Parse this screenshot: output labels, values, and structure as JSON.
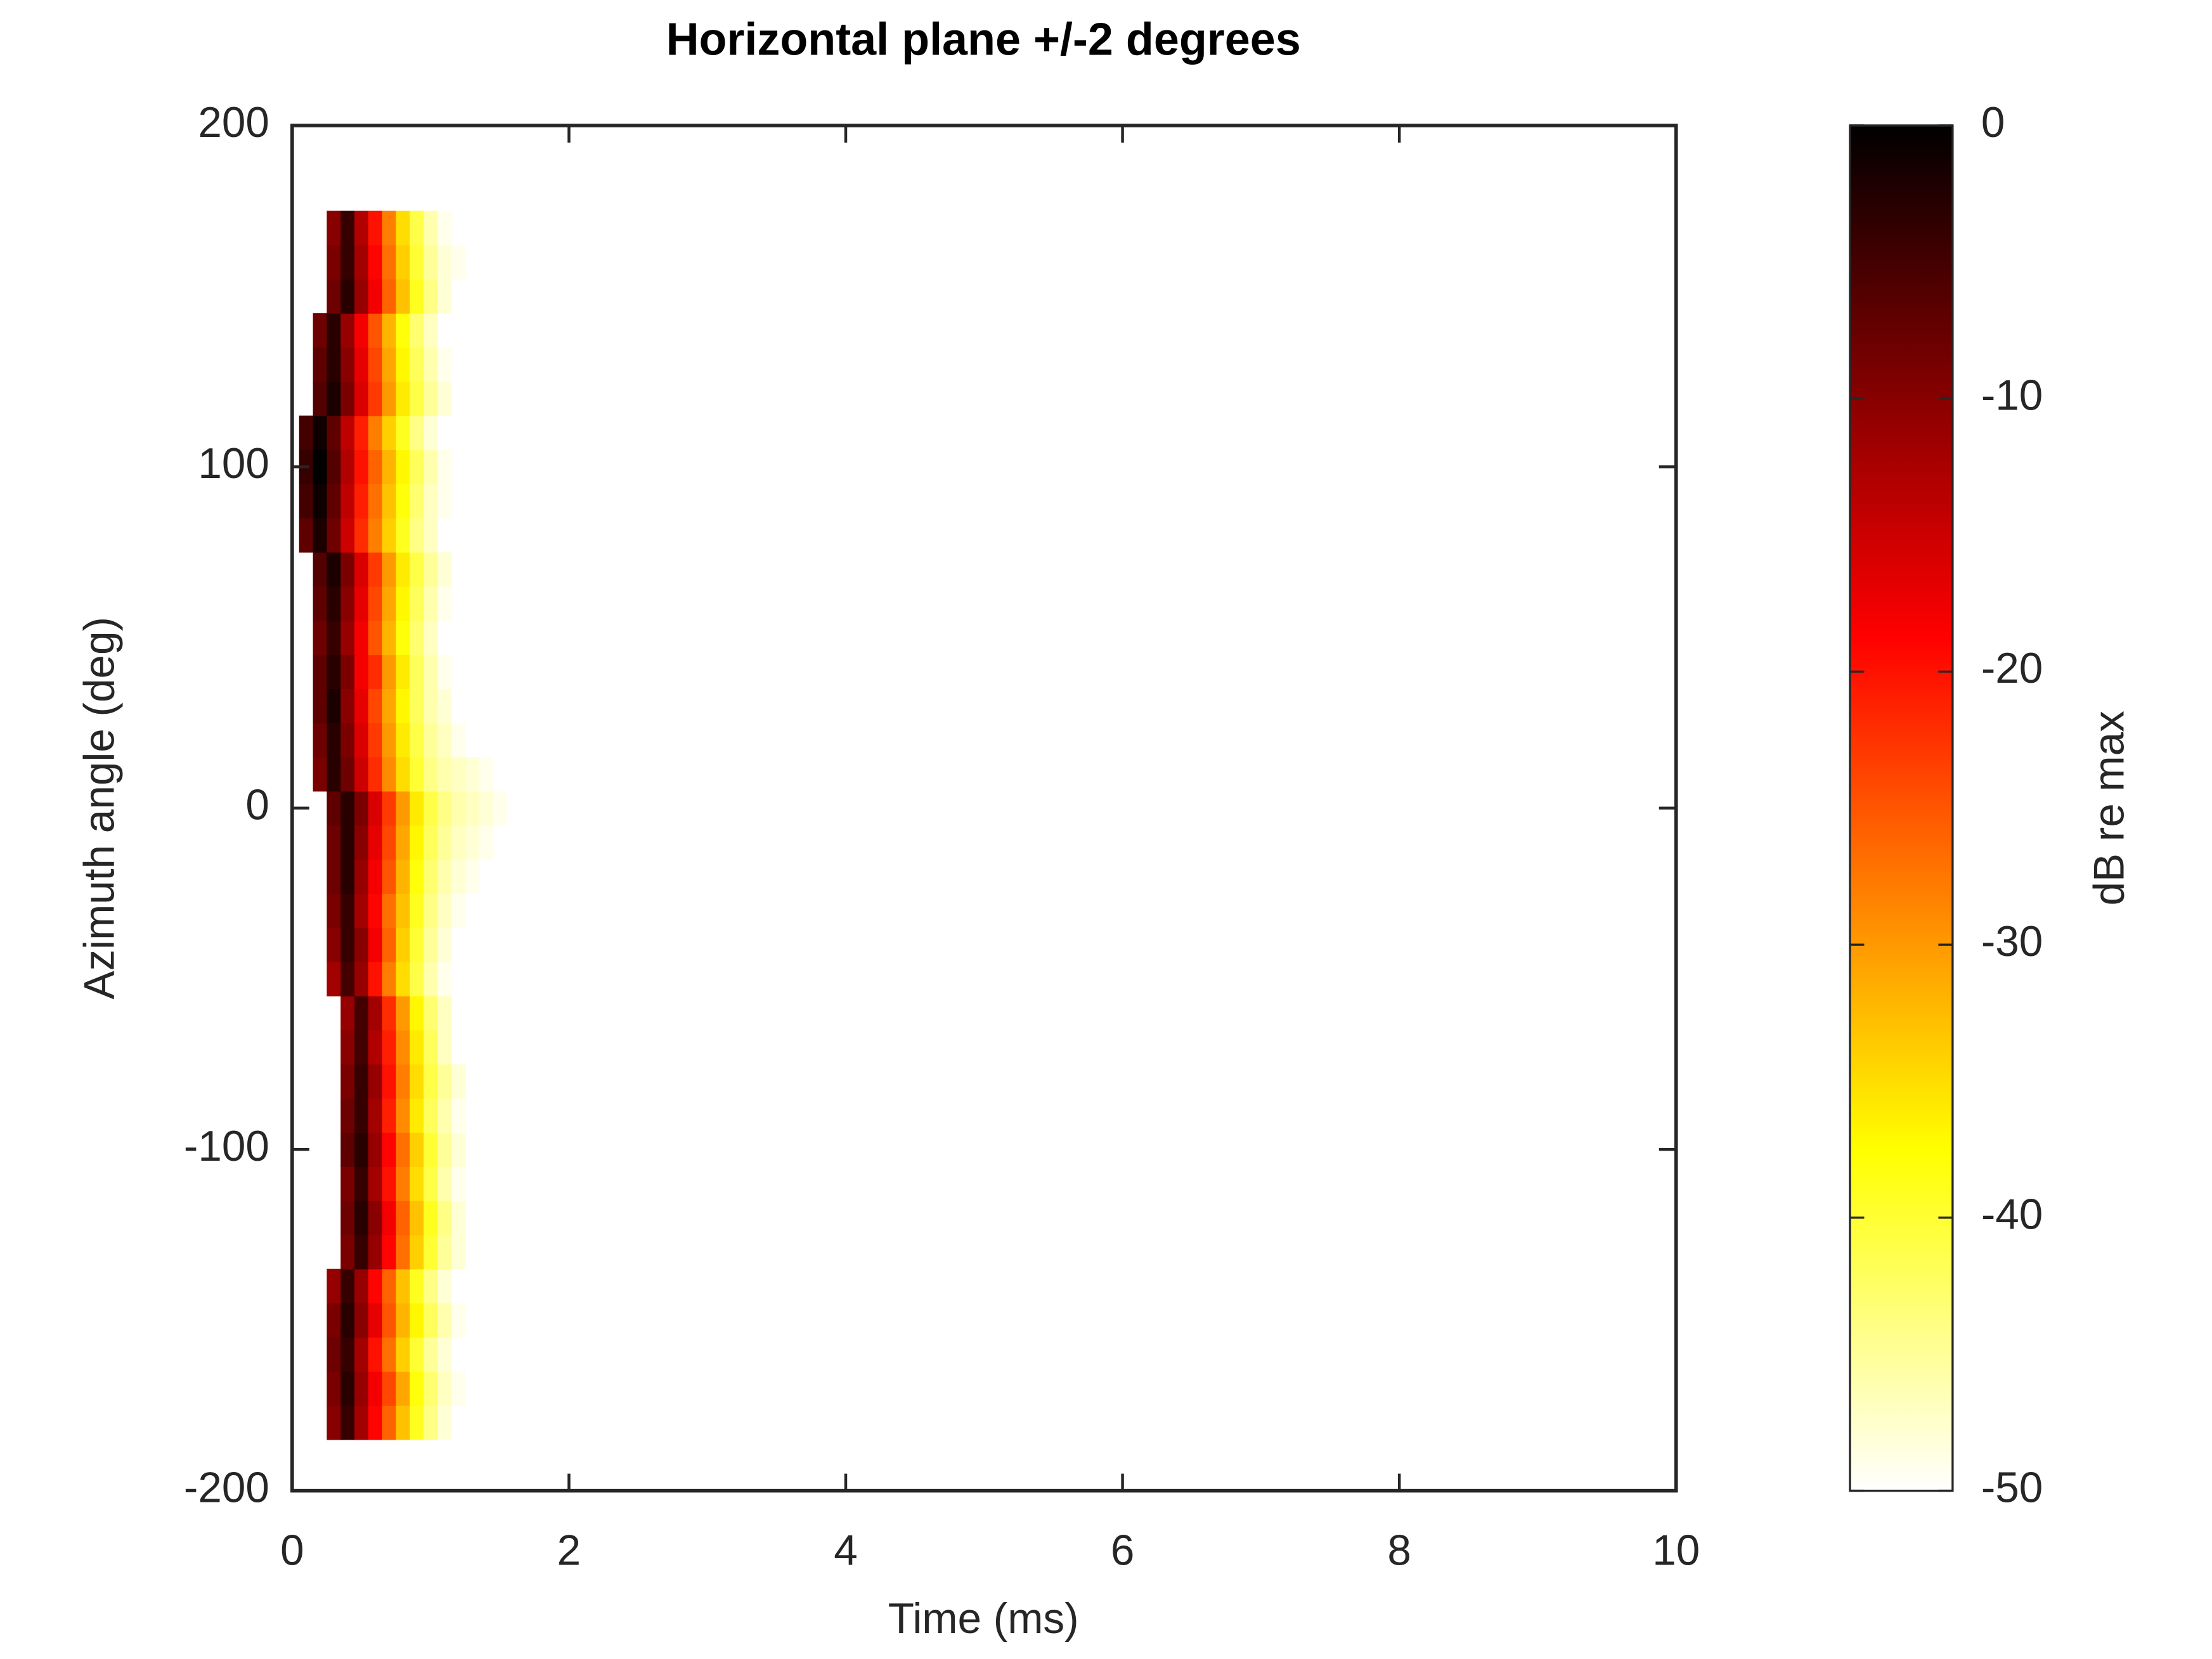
{
  "chart_data": {
    "type": "heatmap",
    "title": "Horizontal plane +/-2 degrees",
    "x_label": "Time (ms)",
    "y_label": "Azimuth angle (deg)",
    "colorbar_label": "dB re max",
    "colormap": "hot",
    "clim": [
      -50,
      0
    ],
    "cticks": [
      -50,
      -40,
      -30,
      -20,
      -10,
      0
    ],
    "xlim": [
      0,
      10
    ],
    "xticks": [
      0,
      2,
      4,
      6,
      8,
      10
    ],
    "ylim": [
      -200,
      200
    ],
    "yticks": [
      -200,
      -100,
      0,
      100,
      200
    ],
    "x": [
      0.1,
      0.2,
      0.3,
      0.4,
      0.5,
      0.6,
      0.7,
      0.8,
      0.9,
      1.0,
      1.1,
      1.2,
      1.3,
      1.4,
      1.5
    ],
    "y": [
      -180,
      -170,
      -160,
      -150,
      -140,
      -130,
      -120,
      -110,
      -100,
      -90,
      -80,
      -70,
      -60,
      -50,
      -40,
      -30,
      -20,
      -10,
      0,
      10,
      20,
      30,
      40,
      50,
      60,
      70,
      80,
      90,
      100,
      110,
      120,
      130,
      140,
      150,
      160,
      170
    ],
    "z": [
      [
        null,
        null,
        -10,
        -4,
        -12,
        -19,
        -26,
        -33,
        -39,
        -44,
        -48,
        null,
        null,
        null,
        null
      ],
      [
        null,
        null,
        -9,
        -3,
        -11,
        -18,
        -24,
        -31,
        -38,
        -43,
        -47,
        -49,
        null,
        null,
        null
      ],
      [
        null,
        null,
        -8,
        -4,
        -12,
        -20,
        -27,
        -34,
        -40,
        -45,
        -48,
        null,
        null,
        null,
        null
      ],
      [
        null,
        null,
        -9,
        -3,
        -10,
        -17,
        -25,
        -32,
        -37,
        -42,
        -46,
        -49,
        null,
        null,
        null
      ],
      [
        null,
        null,
        -11,
        -4,
        -11,
        -19,
        -26,
        -33,
        -39,
        -44,
        -48,
        null,
        null,
        null,
        null
      ],
      [
        null,
        null,
        null,
        -9,
        -4,
        -11,
        -19,
        -27,
        -34,
        -40,
        -45,
        -48,
        null,
        null,
        null
      ],
      [
        null,
        null,
        null,
        -8,
        -3,
        -10,
        -18,
        -26,
        -33,
        -39,
        -44,
        -48,
        null,
        null,
        null
      ],
      [
        null,
        null,
        null,
        -9,
        -4,
        -12,
        -20,
        -28,
        -35,
        -41,
        -46,
        -49,
        null,
        null,
        null
      ],
      [
        null,
        null,
        null,
        -7,
        -3,
        -11,
        -19,
        -27,
        -34,
        -40,
        -45,
        -48,
        null,
        null,
        null
      ],
      [
        null,
        null,
        null,
        -8,
        -4,
        -12,
        -21,
        -29,
        -36,
        -42,
        -46,
        -49,
        null,
        null,
        null
      ],
      [
        null,
        null,
        null,
        -9,
        -4,
        -11,
        -20,
        -28,
        -35,
        -41,
        -45,
        -48,
        null,
        null,
        null
      ],
      [
        null,
        null,
        null,
        -10,
        -5,
        -13,
        -21,
        -29,
        -36,
        -42,
        -47,
        null,
        null,
        null,
        null
      ],
      [
        null,
        null,
        null,
        -11,
        -5,
        -12,
        -22,
        -30,
        -37,
        -43,
        -47,
        null,
        null,
        null,
        null
      ],
      [
        null,
        null,
        -12,
        -5,
        -11,
        -20,
        -28,
        -35,
        -41,
        -46,
        -49,
        null,
        null,
        null,
        null
      ],
      [
        null,
        null,
        -10,
        -4,
        -10,
        -18,
        -26,
        -34,
        -40,
        -45,
        -48,
        null,
        null,
        null,
        null
      ],
      [
        null,
        null,
        -9,
        -4,
        -12,
        -19,
        -27,
        -33,
        -39,
        -44,
        -47,
        -49,
        null,
        null,
        null
      ],
      [
        null,
        null,
        -8,
        -3,
        -11,
        -18,
        -25,
        -32,
        -38,
        -43,
        -46,
        -48,
        -49,
        null,
        null
      ],
      [
        null,
        null,
        -8,
        -3,
        -10,
        -17,
        -24,
        -31,
        -37,
        -42,
        -45,
        -47,
        -48,
        -49,
        null
      ],
      [
        null,
        null,
        -7,
        -3,
        -9,
        -16,
        -23,
        -30,
        -36,
        -41,
        -44,
        -46,
        -47,
        -48,
        -49
      ],
      [
        null,
        -9,
        -3,
        -8,
        -15,
        -22,
        -29,
        -35,
        -40,
        -44,
        -46,
        -47,
        -48,
        -49,
        null
      ],
      [
        null,
        -8,
        -3,
        -9,
        -16,
        -23,
        -30,
        -36,
        -41,
        -45,
        -47,
        -49,
        null,
        null,
        null
      ],
      [
        null,
        -7,
        -2,
        -10,
        -17,
        -24,
        -31,
        -37,
        -42,
        -46,
        -48,
        null,
        null,
        null,
        null
      ],
      [
        null,
        -7,
        -3,
        -9,
        -18,
        -22,
        -30,
        -36,
        -42,
        -46,
        -49,
        null,
        null,
        null,
        null
      ],
      [
        null,
        -8,
        -4,
        -11,
        -18,
        -25,
        -32,
        -38,
        -43,
        -47,
        null,
        null,
        null,
        null,
        null
      ],
      [
        null,
        -7,
        -3,
        -10,
        -17,
        -24,
        -31,
        -37,
        -42,
        -46,
        -49,
        null,
        null,
        null,
        null
      ],
      [
        null,
        -6,
        -2,
        -9,
        -16,
        -23,
        -30,
        -36,
        -41,
        -45,
        -48,
        null,
        null,
        null,
        null
      ],
      [
        -7,
        -2,
        -8,
        -15,
        -22,
        -28,
        -34,
        -39,
        -44,
        -47,
        null,
        null,
        null,
        null,
        null
      ],
      [
        -5,
        -1,
        -7,
        -14,
        -21,
        -27,
        -33,
        -38,
        -43,
        -47,
        -49,
        null,
        null,
        null,
        null
      ],
      [
        -4,
        0,
        -6,
        -13,
        -20,
        -26,
        -32,
        -37,
        -42,
        -46,
        -49,
        null,
        null,
        null,
        null
      ],
      [
        -5,
        -1,
        -7,
        -14,
        -21,
        -28,
        -34,
        -39,
        -44,
        -48,
        null,
        null,
        null,
        null,
        null
      ],
      [
        null,
        -6,
        -2,
        -9,
        -16,
        -23,
        -30,
        -36,
        -41,
        -45,
        -48,
        null,
        null,
        null,
        null
      ],
      [
        null,
        -7,
        -3,
        -10,
        -17,
        -24,
        -31,
        -37,
        -42,
        -46,
        -49,
        null,
        null,
        null,
        null
      ],
      [
        null,
        -8,
        -3,
        -11,
        -18,
        -25,
        -32,
        -38,
        -43,
        -47,
        null,
        null,
        null,
        null,
        null
      ],
      [
        null,
        null,
        -8,
        -3,
        -11,
        -18,
        -26,
        -33,
        -39,
        -44,
        -48,
        null,
        null,
        null,
        null
      ],
      [
        null,
        null,
        -9,
        -4,
        -12,
        -19,
        -27,
        -34,
        -40,
        -45,
        -48,
        -49,
        null,
        null,
        null
      ],
      [
        null,
        null,
        -10,
        -4,
        -13,
        -20,
        -28,
        -35,
        -41,
        -46,
        -49,
        null,
        null,
        null,
        null
      ]
    ]
  }
}
